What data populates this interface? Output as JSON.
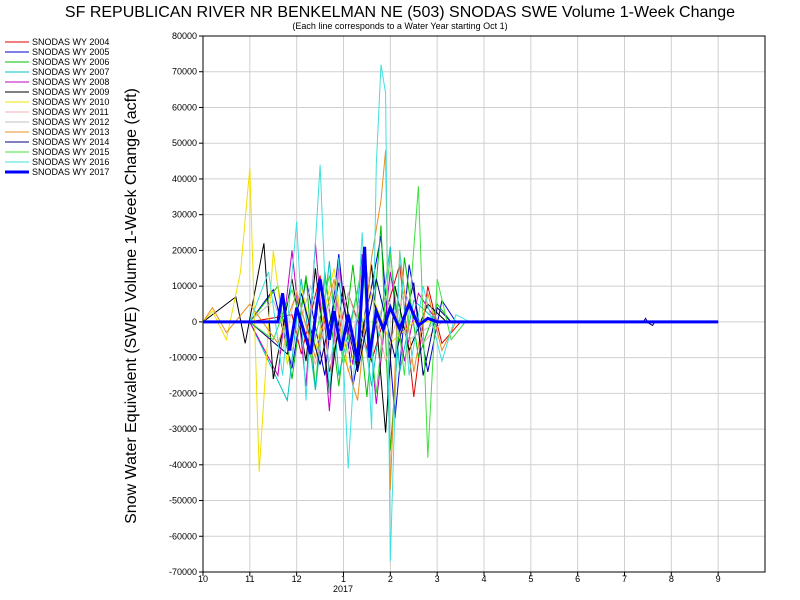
{
  "chart_data": {
    "type": "line",
    "title": "SF REPUBLICAN RIVER NR BENKELMAN NE (503) SNODAS SWE Volume 1-Week Change",
    "subtitle": "(Each line corresponds to a Water Year starting Oct 1)",
    "ylabel": "Snow Water Equivalent (SWE) Volume 1-Week Change (acft)",
    "xlabel": "",
    "x_ticks": [
      "10",
      "11",
      "12",
      "1",
      "2",
      "3",
      "4",
      "5",
      "6",
      "7",
      "8",
      "9"
    ],
    "x_year_label": "2017",
    "ylim": [
      -70000,
      80000
    ],
    "y_ticks": [
      "80000",
      "70000",
      "60000",
      "50000",
      "40000",
      "30000",
      "20000",
      "10000",
      "0",
      "-10000",
      "-20000",
      "-30000",
      "-40000",
      "-50000",
      "-60000",
      "-70000"
    ],
    "grid": true,
    "legend_position": "left",
    "series": [
      {
        "name": "SNODAS WY 2004",
        "color": "#e00000",
        "values": [
          [
            10.0,
            0
          ],
          [
            11.0,
            0
          ],
          [
            11.9,
            2000
          ],
          [
            12.1,
            -9000
          ],
          [
            12.5,
            13000
          ],
          [
            12.7,
            -14000
          ],
          [
            13.1,
            8000
          ],
          [
            13.6,
            -11000
          ],
          [
            14.2,
            16000
          ],
          [
            14.5,
            -21000
          ],
          [
            14.8,
            10000
          ],
          [
            15.1,
            -6000
          ],
          [
            15.5,
            0
          ],
          [
            17.0,
            0
          ],
          [
            21.0,
            0
          ]
        ]
      },
      {
        "name": "SNODAS WY 2005",
        "color": "#0000d0",
        "values": [
          [
            10.0,
            0
          ],
          [
            11.0,
            0
          ],
          [
            11.5,
            9000
          ],
          [
            11.9,
            -13000
          ],
          [
            12.2,
            12000
          ],
          [
            12.6,
            -15000
          ],
          [
            12.9,
            19000
          ],
          [
            13.2,
            -18000
          ],
          [
            13.8,
            24000
          ],
          [
            14.1,
            -27000
          ],
          [
            14.4,
            16000
          ],
          [
            14.8,
            -14000
          ],
          [
            15.1,
            6000
          ],
          [
            15.4,
            0
          ],
          [
            17.0,
            0
          ],
          [
            21.0,
            0
          ]
        ]
      },
      {
        "name": "SNODAS WY 2006",
        "color": "#00c000",
        "values": [
          [
            10.0,
            0
          ],
          [
            11.0,
            0
          ],
          [
            11.6,
            10000
          ],
          [
            11.9,
            -16000
          ],
          [
            12.2,
            13000
          ],
          [
            12.4,
            -19000
          ],
          [
            12.6,
            14000
          ],
          [
            12.9,
            -18000
          ],
          [
            13.2,
            16000
          ],
          [
            13.5,
            -21000
          ],
          [
            13.8,
            27000
          ],
          [
            14.0,
            -36000
          ],
          [
            14.3,
            18000
          ],
          [
            14.6,
            -10000
          ],
          [
            15.0,
            5000
          ],
          [
            15.3,
            0
          ],
          [
            17.0,
            0
          ],
          [
            21.0,
            0
          ]
        ]
      },
      {
        "name": "SNODAS WY 2007",
        "color": "#00c0c0",
        "values": [
          [
            10.0,
            0
          ],
          [
            11.0,
            0
          ],
          [
            11.8,
            -22000
          ],
          [
            12.1,
            12000
          ],
          [
            12.4,
            -19000
          ],
          [
            12.7,
            17000
          ],
          [
            12.9,
            -15000
          ],
          [
            13.3,
            9000
          ],
          [
            13.6,
            -18000
          ],
          [
            14.0,
            21000
          ],
          [
            14.2,
            -14000
          ],
          [
            14.5,
            6000
          ],
          [
            15.0,
            0
          ],
          [
            17.0,
            0
          ],
          [
            21.0,
            0
          ]
        ]
      },
      {
        "name": "SNODAS WY 2008",
        "color": "#c000c0",
        "values": [
          [
            10.0,
            0
          ],
          [
            11.0,
            0
          ],
          [
            11.6,
            -15000
          ],
          [
            11.9,
            20000
          ],
          [
            12.2,
            -18000
          ],
          [
            12.4,
            22000
          ],
          [
            12.7,
            -25000
          ],
          [
            12.9,
            16000
          ],
          [
            13.2,
            -12000
          ],
          [
            13.4,
            19000
          ],
          [
            13.7,
            -23000
          ],
          [
            14.0,
            14000
          ],
          [
            14.3,
            -11000
          ],
          [
            14.6,
            8000
          ],
          [
            15.0,
            0
          ],
          [
            17.0,
            0
          ],
          [
            21.0,
            0
          ]
        ]
      },
      {
        "name": "SNODAS WY 2009",
        "color": "#000000",
        "values": [
          [
            10.0,
            0
          ],
          [
            10.7,
            7000
          ],
          [
            10.9,
            -6000
          ],
          [
            11.3,
            22000
          ],
          [
            11.5,
            -16000
          ],
          [
            11.9,
            12000
          ],
          [
            12.2,
            -11000
          ],
          [
            12.4,
            15000
          ],
          [
            12.7,
            -20000
          ],
          [
            13.0,
            10000
          ],
          [
            13.3,
            -13000
          ],
          [
            13.6,
            16000
          ],
          [
            13.9,
            -31000
          ],
          [
            14.1,
            10000
          ],
          [
            14.4,
            -8000
          ],
          [
            14.8,
            5000
          ],
          [
            15.2,
            0
          ],
          [
            17.0,
            0
          ],
          [
            21.0,
            0
          ]
        ]
      },
      {
        "name": "SNODAS WY 2010",
        "color": "#f0e000",
        "values": [
          [
            10.0,
            0
          ],
          [
            10.2,
            3000
          ],
          [
            10.5,
            -5000
          ],
          [
            10.8,
            14000
          ],
          [
            11.0,
            43000
          ],
          [
            11.2,
            -42000
          ],
          [
            11.5,
            20000
          ],
          [
            11.8,
            -12000
          ],
          [
            12.1,
            10000
          ],
          [
            12.4,
            -8000
          ],
          [
            12.8,
            15000
          ],
          [
            13.1,
            -14000
          ],
          [
            13.6,
            8000
          ],
          [
            14.0,
            -6000
          ],
          [
            14.5,
            0
          ],
          [
            17.0,
            0
          ],
          [
            21.0,
            0
          ]
        ]
      },
      {
        "name": "SNODAS WY 2011",
        "color": "#f0b0b0",
        "values": [
          [
            10.0,
            0
          ],
          [
            11.0,
            0
          ],
          [
            11.7,
            -8000
          ],
          [
            12.0,
            9000
          ],
          [
            12.4,
            -12000
          ],
          [
            12.8,
            10000
          ],
          [
            13.1,
            -9000
          ],
          [
            13.5,
            14000
          ],
          [
            13.9,
            -11000
          ],
          [
            14.3,
            9000
          ],
          [
            14.7,
            -6000
          ],
          [
            15.1,
            0
          ],
          [
            17.0,
            0
          ],
          [
            21.0,
            0
          ]
        ]
      },
      {
        "name": "SNODAS WY 2012",
        "color": "#c0c0c0",
        "values": [
          [
            10.0,
            0
          ],
          [
            11.0,
            0
          ],
          [
            11.5,
            6000
          ],
          [
            11.9,
            -8000
          ],
          [
            12.3,
            10000
          ],
          [
            12.7,
            -11000
          ],
          [
            13.1,
            8000
          ],
          [
            13.5,
            -9000
          ],
          [
            13.9,
            7000
          ],
          [
            14.4,
            -5000
          ],
          [
            15.0,
            0
          ],
          [
            17.0,
            0
          ],
          [
            21.0,
            0
          ]
        ]
      },
      {
        "name": "SNODAS WY 2013",
        "color": "#e89020",
        "values": [
          [
            10.0,
            0
          ],
          [
            10.2,
            4000
          ],
          [
            10.5,
            -3000
          ],
          [
            11.0,
            5000
          ],
          [
            11.6,
            -6000
          ],
          [
            12.0,
            8000
          ],
          [
            12.4,
            -10000
          ],
          [
            12.8,
            12000
          ],
          [
            13.0,
            -9000
          ],
          [
            13.3,
            -22000
          ],
          [
            13.6,
            18000
          ],
          [
            13.8,
            34000
          ],
          [
            13.9,
            48000
          ],
          [
            14.0,
            -47000
          ],
          [
            14.2,
            20000
          ],
          [
            14.5,
            -14000
          ],
          [
            14.8,
            8000
          ],
          [
            15.1,
            -8000
          ],
          [
            15.4,
            0
          ],
          [
            17.0,
            0
          ],
          [
            21.0,
            0
          ]
        ]
      },
      {
        "name": "SNODAS WY 2014",
        "color": "#000080",
        "values": [
          [
            10.0,
            0
          ],
          [
            11.0,
            0
          ],
          [
            11.8,
            -9000
          ],
          [
            12.1,
            8000
          ],
          [
            12.5,
            -12000
          ],
          [
            12.9,
            11000
          ],
          [
            13.3,
            -14000
          ],
          [
            13.7,
            12000
          ],
          [
            14.1,
            -10000
          ],
          [
            14.5,
            11000
          ],
          [
            14.7,
            -15000
          ],
          [
            15.0,
            4000
          ],
          [
            15.3,
            0
          ],
          [
            17.0,
            0
          ],
          [
            19.4,
            0
          ],
          [
            19.45,
            1000
          ],
          [
            19.5,
            -200
          ],
          [
            19.6,
            -1000
          ],
          [
            19.65,
            0
          ],
          [
            21.0,
            0
          ]
        ]
      },
      {
        "name": "SNODAS WY 2015",
        "color": "#40e040",
        "values": [
          [
            10.0,
            0
          ],
          [
            11.0,
            0
          ],
          [
            11.5,
            -5000
          ],
          [
            11.9,
            9000
          ],
          [
            12.3,
            -10000
          ],
          [
            12.7,
            13000
          ],
          [
            13.0,
            -12000
          ],
          [
            13.4,
            16000
          ],
          [
            13.7,
            -20000
          ],
          [
            14.0,
            19000
          ],
          [
            14.3,
            -15000
          ],
          [
            14.6,
            38000
          ],
          [
            14.8,
            -38000
          ],
          [
            15.0,
            12000
          ],
          [
            15.3,
            -5000
          ],
          [
            15.6,
            0
          ],
          [
            17.0,
            0
          ],
          [
            21.0,
            0
          ]
        ]
      },
      {
        "name": "SNODAS WY 2016",
        "color": "#40e0e0",
        "values": [
          [
            10.0,
            0
          ],
          [
            11.0,
            0
          ],
          [
            11.4,
            14000
          ],
          [
            11.7,
            -15000
          ],
          [
            12.0,
            28000
          ],
          [
            12.2,
            -22000
          ],
          [
            12.5,
            44000
          ],
          [
            12.7,
            -20000
          ],
          [
            12.9,
            18000
          ],
          [
            13.1,
            -41000
          ],
          [
            13.4,
            25000
          ],
          [
            13.6,
            -30000
          ],
          [
            13.7,
            44000
          ],
          [
            13.8,
            72000
          ],
          [
            13.9,
            64000
          ],
          [
            14.0,
            -67000
          ],
          [
            14.2,
            20000
          ],
          [
            14.4,
            -15000
          ],
          [
            14.7,
            10000
          ],
          [
            15.1,
            -11000
          ],
          [
            15.4,
            2000
          ],
          [
            15.7,
            0
          ],
          [
            17.0,
            0
          ],
          [
            21.0,
            0
          ]
        ]
      },
      {
        "name": "SNODAS WY 2017",
        "color": "#0000ff",
        "width": 3,
        "values": [
          [
            10.0,
            0
          ],
          [
            11.0,
            0
          ],
          [
            11.6,
            0
          ],
          [
            11.7,
            8000
          ],
          [
            11.85,
            -8000
          ],
          [
            12.0,
            4000
          ],
          [
            12.3,
            -9000
          ],
          [
            12.5,
            12000
          ],
          [
            12.7,
            -5000
          ],
          [
            12.8,
            3000
          ],
          [
            12.95,
            -8000
          ],
          [
            13.1,
            2000
          ],
          [
            13.3,
            -11000
          ],
          [
            13.45,
            21000
          ],
          [
            13.55,
            -10000
          ],
          [
            13.7,
            3000
          ],
          [
            13.85,
            -2000
          ],
          [
            14.0,
            4000
          ],
          [
            14.2,
            -2000
          ],
          [
            14.4,
            5000
          ],
          [
            14.6,
            -1000
          ],
          [
            14.8,
            1000
          ],
          [
            15.0,
            0
          ],
          [
            21.0,
            0
          ]
        ]
      }
    ]
  }
}
